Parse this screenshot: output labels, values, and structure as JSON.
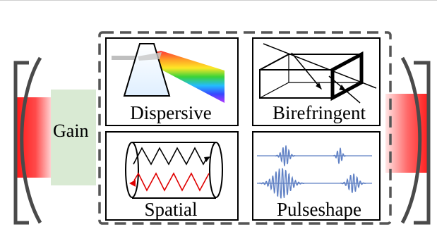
{
  "colors": {
    "beam_red": "#ff1f1f",
    "gain_green": "#d9ead3",
    "mirror_gray": "#4a4a4a",
    "dashed_border": "#555555",
    "pulse_blue": "#5f80c4",
    "zigzag_red": "#e00000"
  },
  "gain": {
    "label": "Gain"
  },
  "boxes": {
    "dispersive": {
      "label": "Dispersive"
    },
    "birefringent": {
      "label": "Birefringent"
    },
    "spatial": {
      "label": "Spatial"
    },
    "pulseshape": {
      "label": "Pulseshape"
    }
  },
  "icons": {
    "left_mirror": "left-mirror-bracket-icon",
    "right_mirror": "right-mirror-bracket-icon",
    "prism": "prism-rainbow-icon",
    "crystal": "birefringent-crystal-icon",
    "cylinder": "cylinder-zigzag-icon",
    "pulses": "pulse-waveform-icon"
  }
}
